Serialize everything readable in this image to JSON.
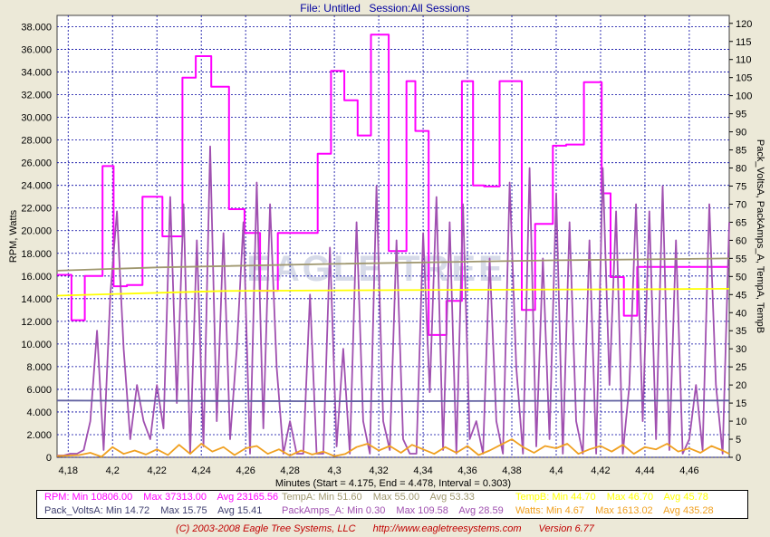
{
  "header": {
    "file": "File: Untitled",
    "session": "Session:All Sessions"
  },
  "chart_data": {
    "type": "line",
    "xlabel": "Minutes (Start = 4.175,  End = 4.478, Interval = 0.303)",
    "ylabel": "RPM, Watts",
    "y2label": "Pack_VoltsA, PackAmps_A, TempA, TempB",
    "xlim": [
      4.175,
      4.478
    ],
    "ylim": [
      0,
      39000
    ],
    "y2lim": [
      0,
      122.2
    ],
    "x_ticks": [
      "4,18",
      "4,2",
      "4,22",
      "4,24",
      "4,26",
      "4,28",
      "4,3",
      "4,32",
      "4,34",
      "4,36",
      "4,38",
      "4,4",
      "4,42",
      "4,44",
      "4,46"
    ],
    "y_ticks": [
      "0",
      "2.000",
      "4.000",
      "6.000",
      "8.000",
      "10.000",
      "12.000",
      "14.000",
      "16.000",
      "18.000",
      "20.000",
      "22.000",
      "24.000",
      "26.000",
      "28.000",
      "30.000",
      "32.000",
      "34.000",
      "36.000",
      "38.000"
    ],
    "y2_ticks": [
      "0",
      "5",
      "10",
      "15",
      "20",
      "25",
      "30",
      "35",
      "40",
      "45",
      "50",
      "55",
      "60",
      "65",
      "70",
      "75",
      "80",
      "85",
      "90",
      "95",
      "100",
      "105",
      "110",
      "115",
      "120"
    ],
    "grid": true,
    "watermark": "EAGLE TREE",
    "series": [
      {
        "name": "RPM",
        "axis": "left",
        "color": "#ff00ff",
        "step": true,
        "x": [
          4.175,
          4.1815,
          4.1875,
          4.1955,
          4.2005,
          4.2065,
          4.2135,
          4.2225,
          4.2315,
          4.2375,
          4.2445,
          4.2525,
          4.2595,
          4.2665,
          4.2745,
          4.2845,
          4.2925,
          4.2985,
          4.3045,
          4.3105,
          4.3165,
          4.3245,
          4.3325,
          4.3365,
          4.3425,
          4.3505,
          4.3575,
          4.3625,
          4.3675,
          4.3745,
          4.3845,
          4.3905,
          4.3985,
          4.4045,
          4.4125,
          4.4205,
          4.4245,
          4.4305,
          4.4365,
          4.4435,
          4.4505,
          4.4565,
          4.4635,
          4.4705,
          4.4745,
          4.478
        ],
        "y": [
          16100,
          12100,
          16000,
          25700,
          15100,
          15200,
          23000,
          19500,
          33500,
          35400,
          32700,
          21900,
          19800,
          14700,
          19800,
          19800,
          26800,
          34100,
          31500,
          28400,
          37300,
          18200,
          33200,
          28800,
          10800,
          13800,
          33200,
          24000,
          23900,
          33200,
          13000,
          20600,
          27500,
          27600,
          33100,
          23300,
          15900,
          12500,
          16800,
          16800,
          16800,
          16800,
          16800,
          16800,
          16800,
          16800
        ]
      },
      {
        "name": "PackAmps_A",
        "axis": "right",
        "color": "#a050b0",
        "x": [
          4.175,
          4.178,
          4.181,
          4.184,
          4.187,
          4.19,
          4.193,
          4.196,
          4.199,
          4.202,
          4.205,
          4.208,
          4.211,
          4.214,
          4.217,
          4.22,
          4.223,
          4.226,
          4.229,
          4.232,
          4.235,
          4.238,
          4.241,
          4.244,
          4.247,
          4.25,
          4.253,
          4.256,
          4.259,
          4.262,
          4.265,
          4.268,
          4.271,
          4.274,
          4.277,
          4.28,
          4.283,
          4.286,
          4.289,
          4.292,
          4.295,
          4.298,
          4.301,
          4.304,
          4.307,
          4.31,
          4.313,
          4.316,
          4.319,
          4.322,
          4.325,
          4.328,
          4.331,
          4.334,
          4.337,
          4.34,
          4.343,
          4.346,
          4.349,
          4.352,
          4.355,
          4.358,
          4.361,
          4.364,
          4.367,
          4.37,
          4.373,
          4.376,
          4.379,
          4.382,
          4.385,
          4.388,
          4.391,
          4.394,
          4.397,
          4.4,
          4.403,
          4.406,
          4.409,
          4.412,
          4.415,
          4.418,
          4.421,
          4.424,
          4.427,
          4.43,
          4.433,
          4.436,
          4.439,
          4.442,
          4.445,
          4.448,
          4.451,
          4.454,
          4.457,
          4.46,
          4.463,
          4.466,
          4.469,
          4.472,
          4.475,
          4.478
        ],
        "y": [
          0.5,
          0.5,
          1,
          1,
          2,
          10,
          35,
          2,
          45,
          68,
          30,
          5,
          20,
          10,
          5,
          20,
          8,
          72,
          15,
          70,
          1,
          60,
          3,
          86,
          10,
          62,
          5,
          30,
          65,
          1,
          76,
          8,
          70,
          25,
          1,
          10,
          1,
          1,
          45,
          1,
          1,
          58,
          3,
          30,
          1,
          65,
          10,
          1,
          75,
          10,
          2,
          60,
          5,
          1,
          1,
          62,
          18,
          72,
          2,
          65,
          1,
          70,
          5,
          10,
          1,
          55,
          10,
          1,
          76,
          25,
          1,
          80,
          3,
          55,
          5,
          73,
          1,
          65,
          10,
          1,
          60,
          1,
          80,
          20,
          68,
          1,
          20,
          70,
          10,
          68,
          5,
          75,
          2,
          60,
          1,
          5,
          20,
          2,
          70,
          20,
          1,
          65
        ]
      },
      {
        "name": "TempB",
        "axis": "right",
        "color": "#ffff00",
        "x": [
          4.175,
          4.25,
          4.35,
          4.45,
          4.478
        ],
        "y": [
          44.7,
          46,
          46.3,
          46.5,
          46.6
        ]
      },
      {
        "name": "TempA",
        "axis": "right",
        "color": "#a09870",
        "x": [
          4.175,
          4.22,
          4.3,
          4.4,
          4.478
        ],
        "y": [
          51.6,
          52.5,
          53.5,
          54.5,
          55.0
        ]
      },
      {
        "name": "Pack_VoltsA",
        "axis": "right",
        "color": "#6060a0",
        "x": [
          4.175,
          4.3,
          4.478
        ],
        "y": [
          15.7,
          15.5,
          15.7
        ]
      },
      {
        "name": "Watts",
        "axis": "left",
        "color": "#f0a020",
        "x": [
          4.175,
          4.18,
          4.185,
          4.19,
          4.195,
          4.2,
          4.205,
          4.21,
          4.215,
          4.22,
          4.225,
          4.23,
          4.235,
          4.24,
          4.245,
          4.25,
          4.255,
          4.26,
          4.265,
          4.27,
          4.275,
          4.28,
          4.285,
          4.29,
          4.295,
          4.3,
          4.305,
          4.31,
          4.315,
          4.32,
          4.325,
          4.33,
          4.335,
          4.34,
          4.345,
          4.35,
          4.355,
          4.36,
          4.365,
          4.37,
          4.375,
          4.38,
          4.385,
          4.39,
          4.395,
          4.4,
          4.405,
          4.41,
          4.415,
          4.42,
          4.425,
          4.43,
          4.435,
          4.44,
          4.445,
          4.45,
          4.455,
          4.46,
          4.465,
          4.47,
          4.475,
          4.478
        ],
        "y": [
          100,
          150,
          200,
          400,
          50,
          900,
          300,
          600,
          250,
          700,
          200,
          1100,
          300,
          1200,
          500,
          900,
          200,
          800,
          1000,
          300,
          700,
          150,
          600,
          250,
          500,
          100,
          300,
          900,
          1200,
          600,
          1000,
          400,
          1100,
          700,
          300,
          900,
          400,
          1000,
          200,
          600,
          1100,
          1600,
          900,
          400,
          1000,
          800,
          1200,
          300,
          700,
          1000,
          500,
          1100,
          300,
          900,
          700,
          1200,
          500,
          800,
          400,
          1000,
          600,
          300
        ]
      }
    ]
  },
  "stats": {
    "row1": [
      {
        "color": "#ff00ff",
        "items": [
          "RPM:  Min 10806.00",
          "Max 37313.00",
          "Avg 23165.56"
        ]
      },
      {
        "color": "#a09870",
        "items": [
          "TempA:  Min 51.60",
          "Max 55.00",
          "Avg 53.33"
        ]
      },
      {
        "color": "#ffff00",
        "items": [
          "TempB:  Min 44.70",
          "Max 46.70",
          "Avg 45.78"
        ]
      }
    ],
    "row2": [
      {
        "color": "#404070",
        "items": [
          "Pack_VoltsA:  Min 14.72",
          "Max 15.75",
          "Avg 15.41"
        ]
      },
      {
        "color": "#a050b0",
        "items": [
          "PackAmps_A:  Min 0.30",
          "Max 109.58",
          "Avg 28.59"
        ]
      },
      {
        "color": "#f0a020",
        "items": [
          "Watts:  Min 4.67",
          "Max 1613.02",
          "Avg 435.28"
        ]
      }
    ]
  },
  "footer": {
    "copyright": "(C) 2003-2008 Eagle Tree Systems, LLC",
    "url": "http://www.eagletreesystems.com",
    "version": "Version 6.77"
  }
}
